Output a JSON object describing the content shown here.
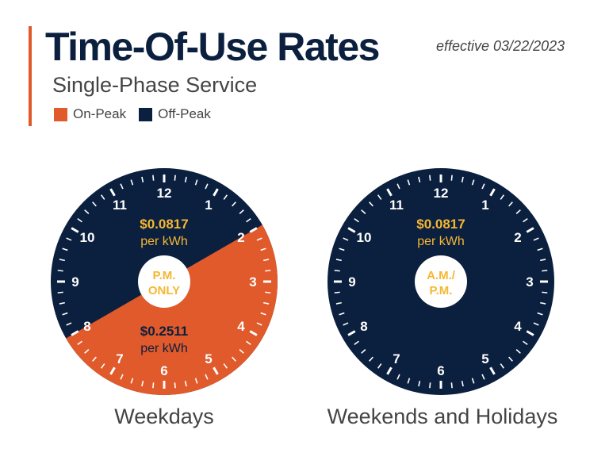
{
  "header": {
    "title": "Time-Of-Use Rates",
    "subtitle": "Single-Phase Service",
    "effective": "effective 03/22/2023"
  },
  "legend": [
    {
      "label": "On-Peak",
      "color": "#e05a2b"
    },
    {
      "label": "Off-Peak",
      "color": "#0b1f3f"
    }
  ],
  "colors": {
    "navy": "#0b1f3f",
    "orange": "#e05a2b",
    "gold": "#f5b731",
    "white": "#ffffff"
  },
  "clocks": [
    {
      "caption": "Weekdays",
      "center_line1": "P.M.",
      "center_line2": "ONLY",
      "hours": [
        "12",
        "1",
        "2",
        "3",
        "4",
        "5",
        "6",
        "7",
        "8",
        "9",
        "10",
        "11"
      ],
      "off_peak_rate": "$0.0817",
      "off_peak_unit": "per kWh",
      "on_peak_rate": "$0.2511",
      "on_peak_unit": "per kWh",
      "on_peak_start_hour": 2,
      "on_peak_end_hour": 8
    },
    {
      "caption": "Weekends and Holidays",
      "center_line1": "A.M./",
      "center_line2": "P.M.",
      "hours": [
        "12",
        "1",
        "2",
        "3",
        "4",
        "5",
        "6",
        "7",
        "8",
        "9",
        "10",
        "11"
      ],
      "off_peak_rate": "$0.0817",
      "off_peak_unit": "per kWh"
    }
  ]
}
